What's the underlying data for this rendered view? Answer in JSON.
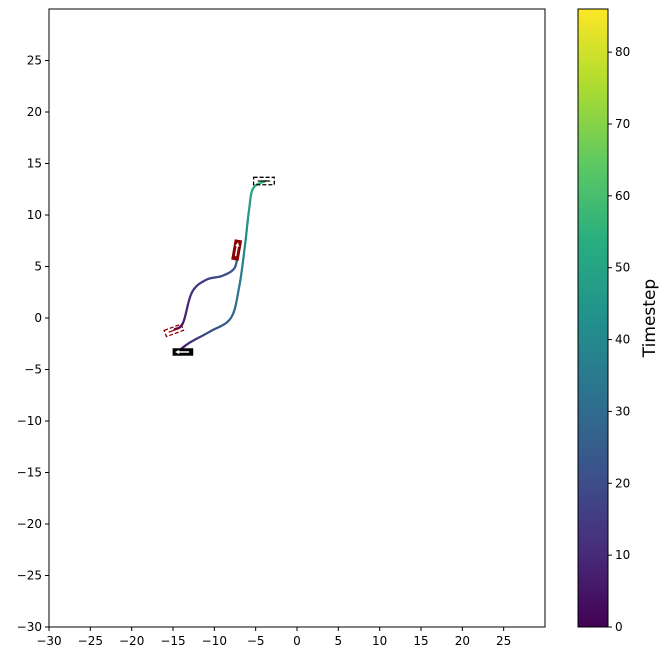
{
  "chart_data": {
    "type": "line",
    "title": "",
    "xlabel": "",
    "ylabel": "",
    "xlim": [
      -30,
      30
    ],
    "ylim": [
      -30,
      30
    ],
    "xticks": [
      -30,
      -25,
      -20,
      -15,
      -10,
      -5,
      0,
      5,
      10,
      15,
      20,
      25
    ],
    "yticks": [
      -30,
      -25,
      -20,
      -15,
      -10,
      -5,
      0,
      5,
      10,
      15,
      20,
      25
    ],
    "grid": false,
    "colormap": "viridis",
    "series": [
      {
        "timesteps": [
          0,
          10,
          20,
          28,
          34,
          40,
          46,
          52,
          58
        ],
        "x": [
          -14.3,
          -13.0,
          -10.5,
          -8.0,
          -7.0,
          -6.3,
          -5.8,
          -5.3,
          -3.8
        ],
        "y": [
          -3.2,
          -2.4,
          -1.3,
          0.0,
          3.0,
          7.0,
          10.5,
          12.6,
          13.3
        ]
      },
      {
        "timesteps": [
          0,
          6,
          12,
          16,
          20,
          24,
          28
        ],
        "x": [
          -14.8,
          -13.8,
          -12.7,
          -11.0,
          -9.0,
          -7.6,
          -7.2
        ],
        "y": [
          -1.1,
          -0.5,
          2.5,
          3.7,
          4.1,
          4.8,
          6.0
        ]
      }
    ],
    "vehicles": [
      {
        "x": -13.8,
        "y": -3.3,
        "heading": 180,
        "length": 2.5,
        "width": 0.9,
        "style": "solid",
        "color": "#000000"
      },
      {
        "x": -4.0,
        "y": 13.3,
        "heading": 0,
        "length": 2.5,
        "width": 0.9,
        "style": "dashed",
        "color": "#000000"
      },
      {
        "x": -7.3,
        "y": 6.6,
        "heading": 80,
        "length": 2.5,
        "width": 0.9,
        "style": "solid",
        "color": "#8b0000"
      },
      {
        "x": -14.9,
        "y": -1.2,
        "heading": 20,
        "length": 2.2,
        "width": 0.8,
        "style": "dashed",
        "color": "#8b0000"
      }
    ],
    "colorbar": {
      "label": "Timestep",
      "min": 0,
      "max": 86,
      "ticks": [
        0,
        10,
        20,
        30,
        40,
        50,
        60,
        70,
        80
      ]
    }
  }
}
